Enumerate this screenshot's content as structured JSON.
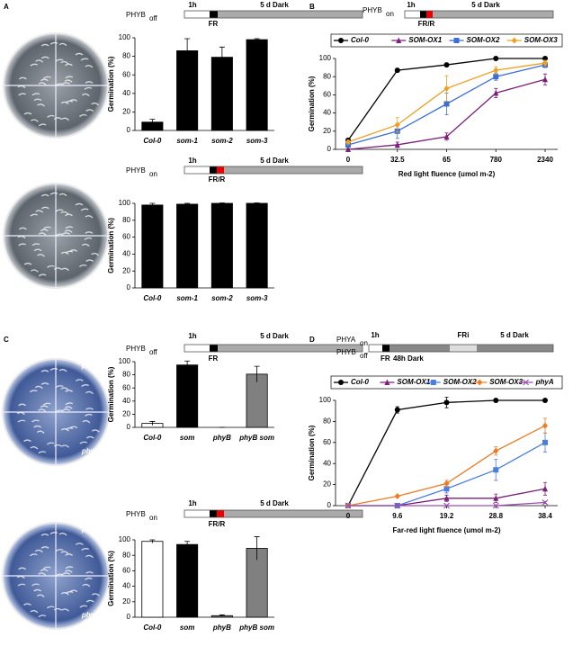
{
  "panel_labels": [
    "A",
    "B",
    "C",
    "D"
  ],
  "plates": [
    {
      "labels": [
        [
          "Col-0"
        ],
        [
          "som-1"
        ],
        [
          "som-2"
        ],
        [
          "som-3"
        ]
      ]
    },
    {
      "labels": [
        [
          "Col-0"
        ],
        [
          "som-1"
        ],
        [
          "som-2"
        ],
        [
          "som-3"
        ]
      ]
    },
    {
      "labels": [
        [
          "Col-0"
        ],
        [
          "phyB-9"
        ],
        [
          "som-1"
        ],
        [
          "phyB-9",
          "/som-1"
        ]
      ]
    },
    {
      "labels": [
        [
          "Col-0"
        ],
        [
          "phyB-9"
        ],
        [
          "som-1"
        ],
        [
          "phyB-9",
          "/som-1"
        ]
      ]
    }
  ],
  "schemes": [
    {
      "receptors": [
        {
          "name": "PHYB",
          "state": "off"
        }
      ],
      "labels": [
        "1h",
        "5 d Dark",
        "FR"
      ]
    },
    {
      "receptors": [
        {
          "name": "PHYB",
          "state": "on"
        }
      ],
      "labels": [
        "1h",
        "5 d Dark",
        "FR/R"
      ]
    },
    {
      "receptors": [
        {
          "name": "PHYB",
          "state": "on"
        }
      ],
      "labels": [
        "1h",
        "5 d Dark",
        "FR/R"
      ]
    },
    {
      "receptors": [
        {
          "name": "PHYB",
          "state": "off"
        }
      ],
      "labels": [
        "1h",
        "5 d Dark",
        "FR"
      ]
    },
    {
      "receptors": [
        {
          "name": "PHYB",
          "state": "on"
        }
      ],
      "labels": [
        "1h",
        "5 d Dark",
        "FR/R"
      ]
    },
    {
      "receptors": [
        {
          "name": "PHYA",
          "state": "on"
        },
        {
          "name": "PHYB",
          "state": "off"
        }
      ],
      "labels": [
        "1h",
        "FR",
        "48h Dark",
        "FRi",
        "5 d Dark"
      ]
    }
  ],
  "chart_data": [
    {
      "type": "bar",
      "categories": [
        "Col-0",
        "som-1",
        "som-2",
        "som-3"
      ],
      "values": [
        9,
        86,
        79,
        98
      ],
      "errors": [
        3,
        13,
        11,
        1
      ],
      "colors": [
        "#000",
        "#000",
        "#000",
        "#000"
      ],
      "ylim": [
        0,
        100
      ],
      "yticks": [
        0,
        20,
        40,
        60,
        80,
        100
      ],
      "ylabel": "Germination (%)"
    },
    {
      "type": "bar",
      "categories": [
        "Col-0",
        "som-1",
        "som-2",
        "som-3"
      ],
      "values": [
        98,
        99,
        100,
        100
      ],
      "errors": [
        2,
        1,
        0.5,
        0.5
      ],
      "colors": [
        "#000",
        "#000",
        "#000",
        "#000"
      ],
      "ylim": [
        0,
        100
      ],
      "yticks": [
        0,
        20,
        40,
        60,
        80,
        100
      ],
      "ylabel": "Germination (%)"
    },
    {
      "type": "line",
      "categories": [
        "0",
        "32.5",
        "65",
        "780",
        "2340"
      ],
      "ylim": [
        0,
        100
      ],
      "yticks": [
        0,
        20,
        40,
        60,
        80,
        100
      ],
      "ylabel": "Germination (%)",
      "xlabel": "Red light fluence (umol m-2)",
      "series": [
        {
          "name": "Col-0",
          "color": "#000000",
          "marker": "circle",
          "values": [
            10,
            87,
            93,
            100,
            100
          ],
          "errors": [
            2,
            2,
            2,
            0.5,
            0.5
          ]
        },
        {
          "name": "SOM-OX1",
          "color": "#7b1f7b",
          "marker": "triangle",
          "values": [
            0,
            5,
            14,
            62,
            77
          ],
          "errors": [
            1,
            3,
            4,
            5,
            6
          ]
        },
        {
          "name": "SOM-OX2",
          "color": "#3b6fd6",
          "marker": "square",
          "values": [
            5,
            20,
            50,
            80,
            93
          ],
          "errors": [
            2,
            8,
            12,
            4,
            3
          ]
        },
        {
          "name": "SOM-OX3",
          "color": "#f0a020",
          "marker": "diamond",
          "values": [
            8,
            27,
            67,
            87,
            95
          ],
          "errors": [
            2,
            8,
            14,
            4,
            3
          ]
        }
      ]
    },
    {
      "type": "bar",
      "categories": [
        "Col-0",
        "som",
        "phyB",
        "phyB som"
      ],
      "values": [
        6,
        95,
        0,
        81
      ],
      "errors": [
        3,
        6,
        0,
        12
      ],
      "colors": [
        "#ffffff",
        "#000000",
        "#808080",
        "#808080"
      ],
      "ylim": [
        0,
        100
      ],
      "yticks": [
        0,
        20,
        40,
        60,
        80,
        100
      ],
      "ylabel": "Germination (%)"
    },
    {
      "type": "bar",
      "categories": [
        "Col-0",
        "som",
        "phyB",
        "phyB som"
      ],
      "values": [
        98,
        94,
        2,
        89
      ],
      "errors": [
        2,
        4,
        1,
        15
      ],
      "colors": [
        "#ffffff",
        "#000000",
        "#808080",
        "#808080"
      ],
      "ylim": [
        0,
        100
      ],
      "yticks": [
        0,
        20,
        40,
        60,
        80,
        100
      ],
      "ylabel": "Germination (%)"
    },
    {
      "type": "line",
      "categories": [
        "0",
        "9.6",
        "19.2",
        "28.8",
        "38.4"
      ],
      "ylim": [
        0,
        100
      ],
      "yticks": [
        0,
        20,
        40,
        60,
        80,
        100
      ],
      "ylabel": "Germination (%)",
      "xlabel": "Far-red light fluence (umol m-2)",
      "series": [
        {
          "name": "Col-0",
          "color": "#000000",
          "marker": "circle",
          "values": [
            0,
            91,
            98,
            100,
            100
          ],
          "errors": [
            0,
            3,
            5,
            1,
            1
          ]
        },
        {
          "name": "SOM-OX1",
          "color": "#7b1f7b",
          "marker": "triangle",
          "values": [
            0,
            0,
            7,
            7,
            16
          ],
          "errors": [
            0,
            0,
            3,
            4,
            6
          ]
        },
        {
          "name": "SOM-OX2",
          "color": "#4a7fe0",
          "marker": "square",
          "values": [
            0,
            0,
            16,
            34,
            60
          ],
          "errors": [
            0,
            0,
            4,
            10,
            9
          ]
        },
        {
          "name": "SOM-OX3",
          "color": "#f07a20",
          "marker": "diamond",
          "values": [
            0,
            9,
            21,
            52,
            76
          ],
          "errors": [
            0,
            1,
            3,
            4,
            7
          ]
        },
        {
          "name": "phyA",
          "color": "#9a4fb0",
          "marker": "x",
          "values": [
            0,
            0,
            0,
            0,
            3
          ],
          "errors": [
            0,
            0,
            0,
            0,
            1
          ]
        }
      ]
    }
  ]
}
